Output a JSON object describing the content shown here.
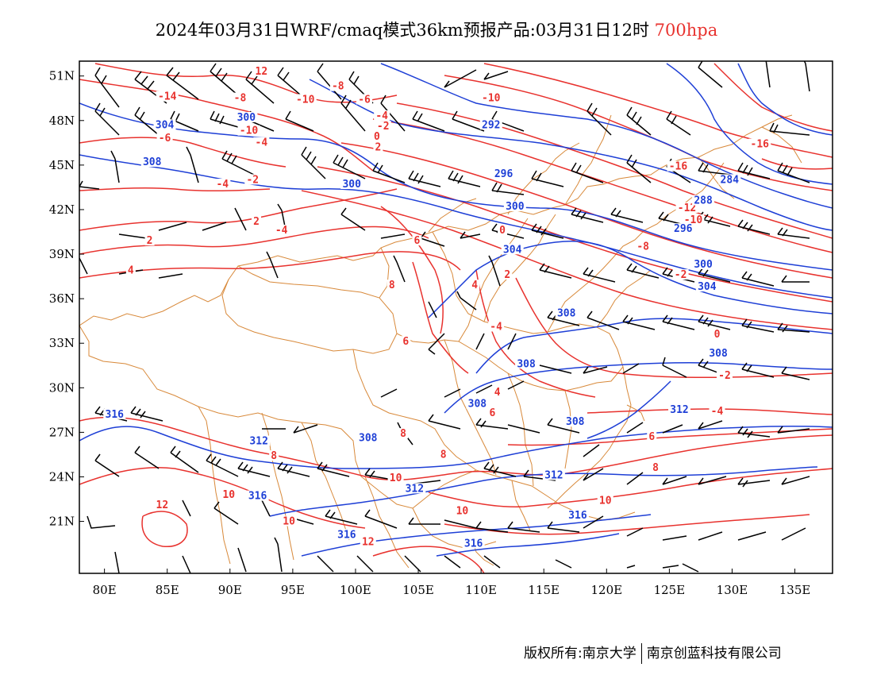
{
  "title": {
    "main": "2024年03月31日WRF/cmaq模式36km预报产品:03月31日12时",
    "level": "700hpa"
  },
  "colors": {
    "temperature": "#e8322e",
    "height": "#1e3fd6",
    "wind_barb": "#000000",
    "borders": "#d8893a",
    "frame": "#000000"
  },
  "axes": {
    "lon_ticks": [
      "80E",
      "85E",
      "90E",
      "95E",
      "100E",
      "105E",
      "110E",
      "115E",
      "120E",
      "125E",
      "130E",
      "135E"
    ],
    "lat_ticks": [
      "51N",
      "48N",
      "45N",
      "42N",
      "39N",
      "36N",
      "33N",
      "30N",
      "27N",
      "24N",
      "21N"
    ]
  },
  "map": {
    "lon_range": [
      78,
      138
    ],
    "lat_range": [
      17.5,
      52
    ],
    "temperature_labels": [
      {
        "text": "12",
        "lon": 92.5,
        "lat": 51.2
      },
      {
        "text": "-14",
        "lon": 85.0,
        "lat": 49.5
      },
      {
        "text": "-8",
        "lon": 90.8,
        "lat": 49.4
      },
      {
        "text": "-10",
        "lon": 91.5,
        "lat": 47.2
      },
      {
        "text": "-6",
        "lon": 84.8,
        "lat": 46.7
      },
      {
        "text": "-4",
        "lon": 92.5,
        "lat": 46.4
      },
      {
        "text": "-2",
        "lon": 91.8,
        "lat": 43.9
      },
      {
        "text": "-4",
        "lon": 89.4,
        "lat": 43.6
      },
      {
        "text": "2",
        "lon": 92.1,
        "lat": 41.1
      },
      {
        "text": "2",
        "lon": 83.6,
        "lat": 39.8
      },
      {
        "text": "4",
        "lon": 82.1,
        "lat": 37.8
      },
      {
        "text": "-4",
        "lon": 94.1,
        "lat": 40.5
      },
      {
        "text": "-10",
        "lon": 96.0,
        "lat": 49.3
      },
      {
        "text": "-8",
        "lon": 98.6,
        "lat": 50.2
      },
      {
        "text": "-6",
        "lon": 100.7,
        "lat": 49.3
      },
      {
        "text": "-4",
        "lon": 102.1,
        "lat": 48.2
      },
      {
        "text": "-2",
        "lon": 102.2,
        "lat": 47.5
      },
      {
        "text": "0",
        "lon": 101.7,
        "lat": 46.8
      },
      {
        "text": "2",
        "lon": 101.8,
        "lat": 46.1
      },
      {
        "text": "-10",
        "lon": 110.8,
        "lat": 49.4
      },
      {
        "text": "6",
        "lon": 104.9,
        "lat": 39.8
      },
      {
        "text": "8",
        "lon": 102.9,
        "lat": 36.8
      },
      {
        "text": "4",
        "lon": 109.5,
        "lat": 36.8
      },
      {
        "text": "2",
        "lon": 112.1,
        "lat": 37.5
      },
      {
        "text": "0",
        "lon": 111.7,
        "lat": 40.5
      },
      {
        "text": "-4",
        "lon": 111.2,
        "lat": 34.0
      },
      {
        "text": "6",
        "lon": 104.0,
        "lat": 33.0
      },
      {
        "text": "-8",
        "lon": 122.9,
        "lat": 39.4
      },
      {
        "text": "-16",
        "lon": 125.7,
        "lat": 44.8
      },
      {
        "text": "-12",
        "lon": 126.4,
        "lat": 42.0
      },
      {
        "text": "-10",
        "lon": 126.9,
        "lat": 41.2
      },
      {
        "text": "-16",
        "lon": 132.2,
        "lat": 46.3
      },
      {
        "text": "-2",
        "lon": 125.9,
        "lat": 37.5
      },
      {
        "text": "0",
        "lon": 128.8,
        "lat": 33.5
      },
      {
        "text": "-2",
        "lon": 129.4,
        "lat": 30.7
      },
      {
        "text": "-4",
        "lon": 128.8,
        "lat": 28.3
      },
      {
        "text": "4",
        "lon": 111.3,
        "lat": 29.6
      },
      {
        "text": "6",
        "lon": 110.9,
        "lat": 28.2
      },
      {
        "text": "6",
        "lon": 123.6,
        "lat": 26.6
      },
      {
        "text": "8",
        "lon": 123.9,
        "lat": 24.5
      },
      {
        "text": "8",
        "lon": 103.8,
        "lat": 26.8
      },
      {
        "text": "8",
        "lon": 107.0,
        "lat": 25.4
      },
      {
        "text": "8",
        "lon": 93.5,
        "lat": 25.3
      },
      {
        "text": "10",
        "lon": 103.2,
        "lat": 23.8
      },
      {
        "text": "10",
        "lon": 108.5,
        "lat": 21.6
      },
      {
        "text": "10",
        "lon": 119.9,
        "lat": 22.3
      },
      {
        "text": "10",
        "lon": 89.9,
        "lat": 22.7
      },
      {
        "text": "10",
        "lon": 94.7,
        "lat": 20.9
      },
      {
        "text": "12",
        "lon": 84.6,
        "lat": 22.0
      },
      {
        "text": "12",
        "lon": 101.0,
        "lat": 19.5
      }
    ],
    "height_labels": [
      {
        "text": "304",
        "lon": 84.8,
        "lat": 47.6
      },
      {
        "text": "300",
        "lon": 91.3,
        "lat": 48.1
      },
      {
        "text": "308",
        "lon": 83.8,
        "lat": 45.1
      },
      {
        "text": "300",
        "lon": 99.7,
        "lat": 43.6
      },
      {
        "text": "292",
        "lon": 110.8,
        "lat": 47.6
      },
      {
        "text": "296",
        "lon": 111.8,
        "lat": 44.3
      },
      {
        "text": "300",
        "lon": 112.7,
        "lat": 42.1
      },
      {
        "text": "304",
        "lon": 112.5,
        "lat": 39.2
      },
      {
        "text": "288",
        "lon": 127.7,
        "lat": 42.5
      },
      {
        "text": "284",
        "lon": 129.8,
        "lat": 43.9
      },
      {
        "text": "296",
        "lon": 126.1,
        "lat": 40.6
      },
      {
        "text": "300",
        "lon": 127.7,
        "lat": 38.2
      },
      {
        "text": "304",
        "lon": 128.0,
        "lat": 36.7
      },
      {
        "text": "308",
        "lon": 116.8,
        "lat": 34.9
      },
      {
        "text": "308",
        "lon": 128.9,
        "lat": 32.2
      },
      {
        "text": "308",
        "lon": 113.6,
        "lat": 31.5
      },
      {
        "text": "308",
        "lon": 109.7,
        "lat": 28.8
      },
      {
        "text": "308",
        "lon": 117.5,
        "lat": 27.6
      },
      {
        "text": "312",
        "lon": 125.8,
        "lat": 28.4
      },
      {
        "text": "316",
        "lon": 80.8,
        "lat": 28.1
      },
      {
        "text": "312",
        "lon": 92.3,
        "lat": 26.3
      },
      {
        "text": "308",
        "lon": 101.0,
        "lat": 26.5
      },
      {
        "text": "312",
        "lon": 104.7,
        "lat": 23.1
      },
      {
        "text": "312",
        "lon": 115.8,
        "lat": 24.0
      },
      {
        "text": "316",
        "lon": 92.2,
        "lat": 22.6
      },
      {
        "text": "316",
        "lon": 117.7,
        "lat": 21.3
      },
      {
        "text": "316",
        "lon": 99.3,
        "lat": 20.0
      },
      {
        "text": "316",
        "lon": 109.4,
        "lat": 19.4
      }
    ]
  },
  "footer": {
    "copyright": "版权所有:南京大学",
    "company": "南京创蓝科技有限公司"
  }
}
